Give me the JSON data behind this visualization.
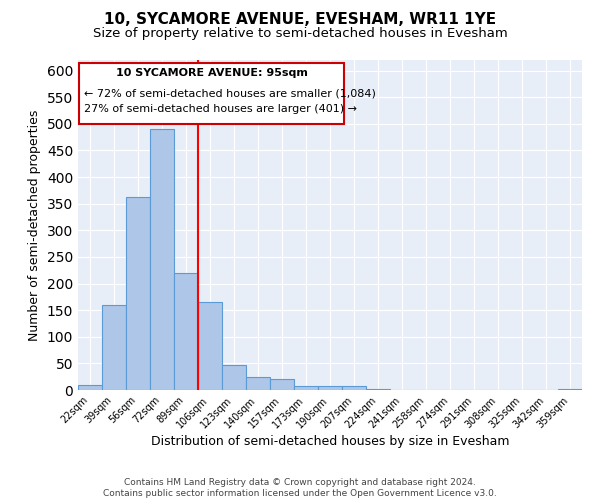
{
  "title": "10, SYCAMORE AVENUE, EVESHAM, WR11 1YE",
  "subtitle": "Size of property relative to semi-detached houses in Evesham",
  "xlabel": "Distribution of semi-detached houses by size in Evesham",
  "ylabel": "Number of semi-detached properties",
  "bar_labels": [
    "22sqm",
    "39sqm",
    "56sqm",
    "72sqm",
    "89sqm",
    "106sqm",
    "123sqm",
    "140sqm",
    "157sqm",
    "173sqm",
    "190sqm",
    "207sqm",
    "224sqm",
    "241sqm",
    "258sqm",
    "274sqm",
    "291sqm",
    "308sqm",
    "325sqm",
    "342sqm",
    "359sqm"
  ],
  "bar_values": [
    10,
    160,
    363,
    491,
    220,
    165,
    47,
    25,
    20,
    8,
    8,
    8,
    2,
    0,
    0,
    0,
    0,
    0,
    0,
    0,
    2
  ],
  "bar_color": "#aec6e8",
  "bar_edge_color": "#5b9bd5",
  "background_color": "#e8eef8",
  "ylim": [
    0,
    620
  ],
  "property_label": "10 SYCAMORE AVENUE: 95sqm",
  "pct_smaller": 72,
  "n_smaller": 1084,
  "pct_larger": 27,
  "n_larger": 401,
  "annotation_box_color": "#ffffff",
  "annotation_box_edge_color": "#cc0000",
  "footer_line1": "Contains HM Land Registry data © Crown copyright and database right 2024.",
  "footer_line2": "Contains public sector information licensed under the Open Government Licence v3.0.",
  "title_fontsize": 11,
  "subtitle_fontsize": 9.5,
  "axis_label_fontsize": 9,
  "tick_fontsize": 7,
  "annotation_fontsize": 8,
  "footer_fontsize": 6.5
}
